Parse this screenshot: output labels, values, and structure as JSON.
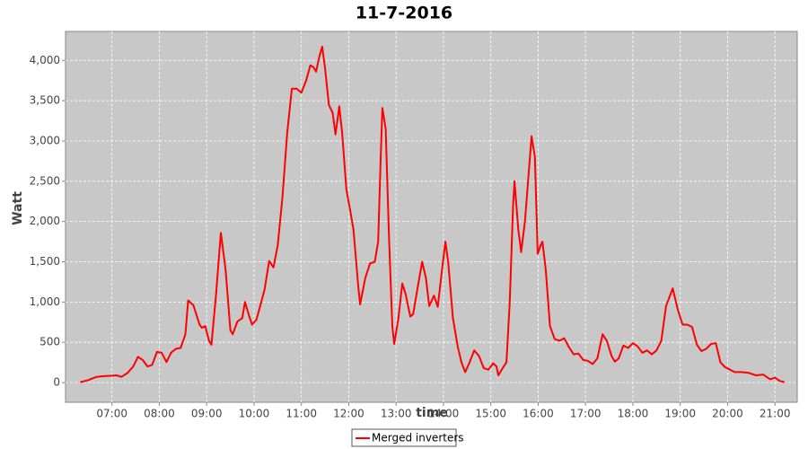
{
  "chart_data": {
    "type": "line",
    "title": "11-7-2016",
    "xlabel": "time",
    "ylabel": "Watt",
    "x": [
      6.33,
      6.5,
      6.67,
      6.83,
      7.0,
      7.1,
      7.2,
      7.33,
      7.45,
      7.55,
      7.65,
      7.75,
      7.85,
      7.95,
      8.05,
      8.15,
      8.25,
      8.35,
      8.45,
      8.55,
      8.61,
      8.72,
      8.85,
      8.9,
      8.97,
      9.05,
      9.1,
      9.2,
      9.3,
      9.4,
      9.5,
      9.55,
      9.65,
      9.75,
      9.81,
      9.9,
      9.96,
      10.05,
      10.13,
      10.22,
      10.32,
      10.41,
      10.5,
      10.6,
      10.7,
      10.8,
      10.9,
      11.0,
      11.1,
      11.19,
      11.25,
      11.31,
      11.38,
      11.44,
      11.5,
      11.58,
      11.66,
      11.72,
      11.8,
      11.86,
      11.95,
      12.03,
      12.1,
      12.2,
      12.24,
      12.35,
      12.45,
      12.55,
      12.62,
      12.67,
      12.71,
      12.78,
      12.85,
      12.92,
      12.96,
      13.05,
      13.13,
      13.2,
      13.3,
      13.36,
      13.46,
      13.55,
      13.63,
      13.7,
      13.8,
      13.88,
      13.95,
      14.04,
      14.1,
      14.2,
      14.3,
      14.38,
      14.46,
      14.55,
      14.65,
      14.75,
      14.85,
      14.95,
      15.05,
      15.12,
      15.16,
      15.25,
      15.33,
      15.4,
      15.47,
      15.5,
      15.58,
      15.64,
      15.72,
      15.8,
      15.86,
      15.93,
      15.99,
      16.05,
      16.09,
      16.16,
      16.25,
      16.35,
      16.45,
      16.55,
      16.65,
      16.75,
      16.85,
      16.95,
      17.05,
      17.15,
      17.25,
      17.36,
      17.45,
      17.55,
      17.62,
      17.7,
      17.8,
      17.9,
      18.0,
      18.1,
      18.2,
      18.3,
      18.4,
      18.5,
      18.6,
      18.7,
      18.84,
      18.95,
      19.05,
      19.15,
      19.25,
      19.35,
      19.45,
      19.55,
      19.65,
      19.75,
      19.85,
      19.95,
      20.05,
      20.15,
      20.3,
      20.45,
      20.6,
      20.75,
      20.9,
      21.0,
      21.1,
      21.2
    ],
    "series": [
      {
        "name": "Merged inverters",
        "color": "#ff0000",
        "values": [
          5,
          30,
          70,
          80,
          85,
          90,
          70,
          120,
          200,
          320,
          280,
          200,
          220,
          380,
          370,
          255,
          370,
          420,
          430,
          600,
          1020,
          960,
          720,
          680,
          700,
          520,
          470,
          1100,
          1860,
          1400,
          650,
          600,
          760,
          800,
          1000,
          820,
          720,
          780,
          950,
          1150,
          1510,
          1430,
          1700,
          2300,
          3100,
          3650,
          3650,
          3600,
          3750,
          3940,
          3920,
          3860,
          4050,
          4170,
          3900,
          3450,
          3350,
          3080,
          3430,
          3100,
          2400,
          2140,
          1900,
          1200,
          970,
          1300,
          1480,
          1500,
          1750,
          2700,
          3410,
          3150,
          1800,
          700,
          480,
          800,
          1230,
          1100,
          820,
          850,
          1200,
          1500,
          1300,
          950,
          1080,
          940,
          1300,
          1750,
          1500,
          800,
          450,
          250,
          130,
          250,
          400,
          330,
          180,
          160,
          240,
          200,
          90,
          180,
          250,
          1000,
          2200,
          2500,
          1900,
          1620,
          2000,
          2600,
          3060,
          2800,
          1600,
          1700,
          1750,
          1400,
          700,
          540,
          520,
          550,
          440,
          350,
          360,
          280,
          270,
          230,
          300,
          600,
          520,
          330,
          260,
          300,
          460,
          430,
          490,
          450,
          370,
          400,
          350,
          400,
          520,
          950,
          1170,
          900,
          720,
          720,
          690,
          470,
          390,
          420,
          480,
          490,
          250,
          190,
          160,
          130,
          130,
          120,
          90,
          100,
          40,
          60,
          20,
          5
        ]
      }
    ],
    "xlim": [
      6.02,
      21.47
    ],
    "xticks": [
      {
        "value": 7,
        "label": "07:00"
      },
      {
        "value": 8,
        "label": "08:00"
      },
      {
        "value": 9,
        "label": "09:00"
      },
      {
        "value": 10,
        "label": "10:00"
      },
      {
        "value": 11,
        "label": "11:00"
      },
      {
        "value": 12,
        "label": "12:00"
      },
      {
        "value": 13,
        "label": "13:00"
      },
      {
        "value": 14,
        "label": "14:00"
      },
      {
        "value": 15,
        "label": "15:00"
      },
      {
        "value": 16,
        "label": "16:00"
      },
      {
        "value": 17,
        "label": "17:00"
      },
      {
        "value": 18,
        "label": "18:00"
      },
      {
        "value": 19,
        "label": "19:00"
      },
      {
        "value": 20,
        "label": "20:00"
      },
      {
        "value": 21,
        "label": "21:00"
      }
    ],
    "ylim": [
      -245,
      4360
    ],
    "yticks": [
      0,
      500,
      {
        "value": 1000,
        "label": "1,000"
      },
      {
        "value": 1500,
        "label": "1,500"
      },
      {
        "value": 2000,
        "label": "2,000"
      },
      {
        "value": 2500,
        "label": "2,500"
      },
      {
        "value": 3000,
        "label": "3,000"
      },
      {
        "value": 3500,
        "label": "3,500"
      },
      {
        "value": 4000,
        "label": "4,000"
      }
    ],
    "grid": true
  }
}
